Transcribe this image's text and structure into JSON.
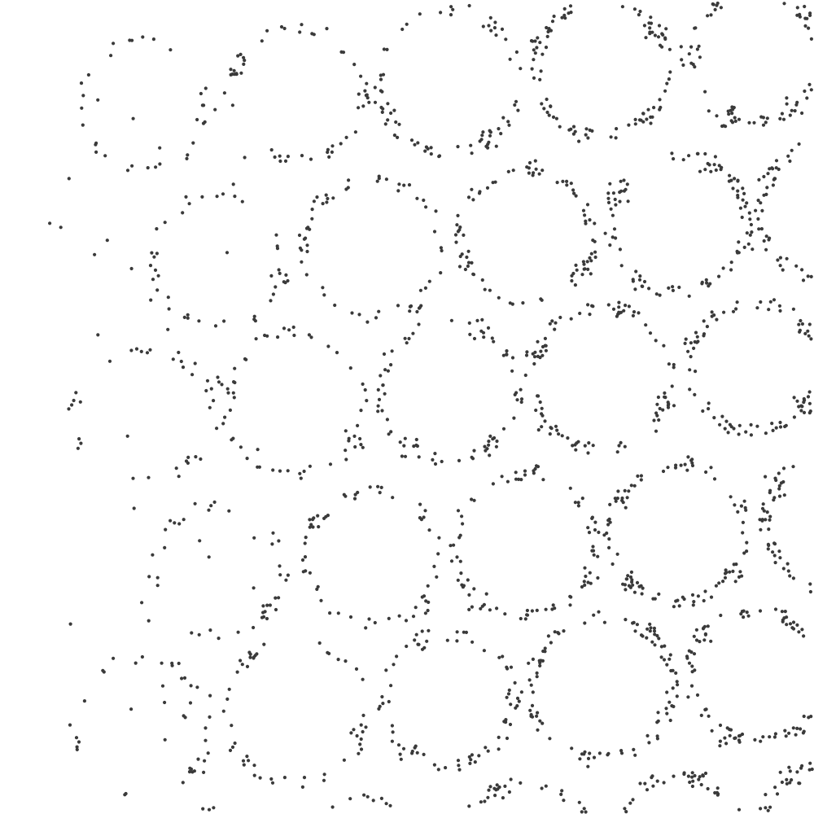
{
  "colors": {
    "background": "#ffffff",
    "dot": "#3a3a3a"
  },
  "pattern": {
    "description_type": "stipple",
    "columns": 5,
    "rows": 6,
    "density_gradient": "sparse-left-to-dense-right"
  }
}
